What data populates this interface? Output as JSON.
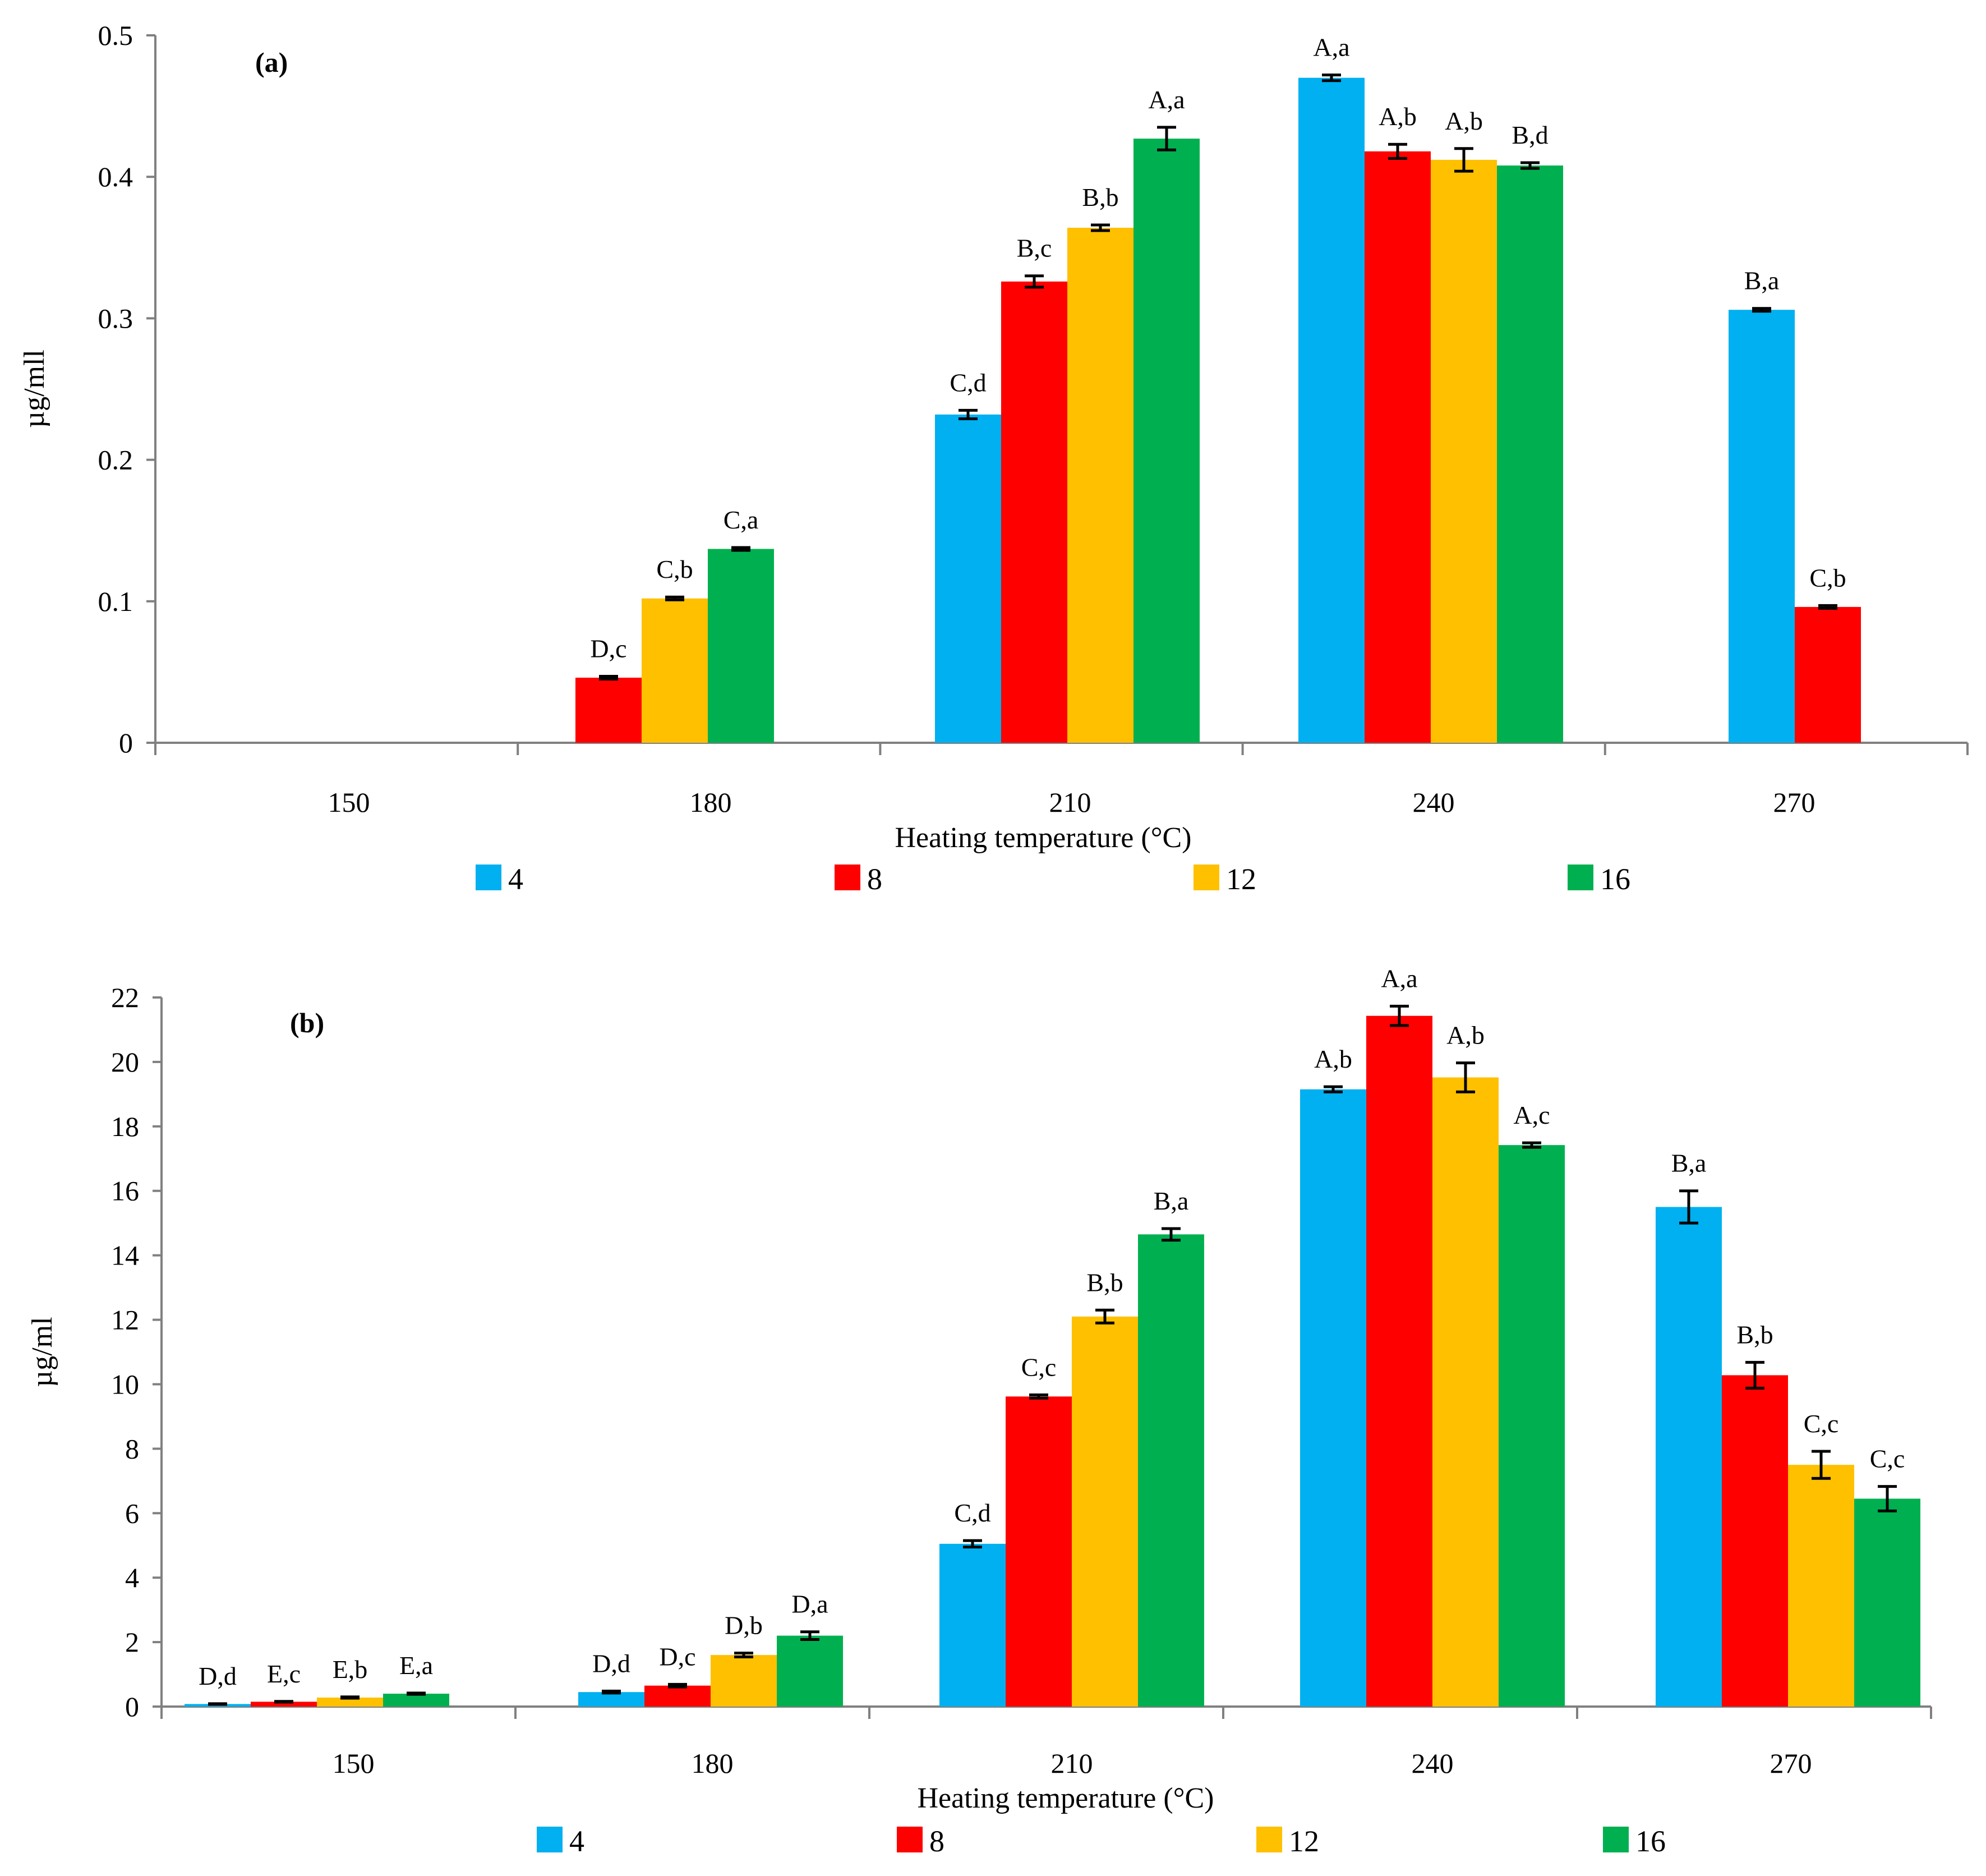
{
  "chart_data": [
    {
      "type": "bar",
      "panel_label": "(a)",
      "xlabel": "Heating  temperature (°C)",
      "ylabel": "µg/mll",
      "ylim": [
        0,
        0.5
      ],
      "yticks": [
        "0",
        "0.1",
        "0.2",
        "0.3",
        "0.4",
        "0.5"
      ],
      "categories": [
        "150",
        "180",
        "210",
        "240",
        "270"
      ],
      "legend_position": "bottom",
      "series": [
        {
          "name": "4",
          "color": "#00B0F0",
          "values": [
            null,
            null,
            0.232,
            0.47,
            0.306
          ],
          "errors": [
            null,
            null,
            0.003,
            0.002,
            0.001
          ],
          "labels": [
            "",
            "",
            "C,d",
            "A,a",
            "B,a"
          ]
        },
        {
          "name": "8",
          "color": "#FF0000",
          "values": [
            null,
            0.046,
            0.326,
            0.418,
            0.096
          ],
          "errors": [
            null,
            0.001,
            0.004,
            0.005,
            0.001
          ],
          "labels": [
            "",
            "D,c",
            "B,c",
            "A,b",
            "C,b"
          ]
        },
        {
          "name": "12",
          "color": "#FFC000",
          "values": [
            null,
            0.102,
            0.364,
            0.412,
            null
          ],
          "errors": [
            null,
            0.001,
            0.002,
            0.008,
            null
          ],
          "labels": [
            "",
            "C,b",
            "B,b",
            "A,b",
            ""
          ]
        },
        {
          "name": "16",
          "color": "#00B050",
          "values": [
            null,
            0.137,
            0.427,
            0.408,
            null
          ],
          "errors": [
            null,
            0.001,
            0.008,
            0.002,
            null
          ],
          "labels": [
            "",
            "C,a",
            "A,a",
            "B,d",
            ""
          ]
        }
      ]
    },
    {
      "type": "bar",
      "panel_label": "(b)",
      "xlabel": "Heating temperature (°C)",
      "ylabel": "µg/ml",
      "ylim": [
        0,
        22
      ],
      "yticks": [
        "0",
        "2",
        "4",
        "6",
        "8",
        "10",
        "12",
        "14",
        "16",
        "18",
        "20",
        "22"
      ],
      "categories": [
        "150",
        "180",
        "210",
        "240",
        "270"
      ],
      "legend_position": "bottom",
      "series": [
        {
          "name": "4",
          "color": "#00B0F0",
          "values": [
            0.08,
            0.45,
            5.05,
            19.15,
            15.5
          ],
          "errors": [
            0.01,
            0.03,
            0.1,
            0.08,
            0.5
          ],
          "labels": [
            "D,d",
            "D,d",
            "C,d",
            "A,b",
            "B,a"
          ]
        },
        {
          "name": "8",
          "color": "#FF0000",
          "values": [
            0.15,
            0.65,
            9.62,
            21.43,
            10.28
          ],
          "errors": [
            0.01,
            0.04,
            0.05,
            0.3,
            0.4
          ],
          "labels": [
            "E,c",
            "D,c",
            "C,c",
            "A,a",
            "B,b"
          ]
        },
        {
          "name": "12",
          "color": "#FFC000",
          "values": [
            0.28,
            1.6,
            12.1,
            19.52,
            7.5
          ],
          "errors": [
            0.02,
            0.06,
            0.2,
            0.45,
            0.42
          ],
          "labels": [
            "E,b",
            "D,b",
            "B,b",
            "A,b",
            "C,c"
          ]
        },
        {
          "name": "16",
          "color": "#00B050",
          "values": [
            0.4,
            2.2,
            14.65,
            17.42,
            6.45
          ],
          "errors": [
            0.02,
            0.12,
            0.18,
            0.07,
            0.38
          ],
          "labels": [
            "E,a",
            "D,a",
            "B,a",
            "A,c",
            "C,c"
          ]
        }
      ]
    }
  ]
}
